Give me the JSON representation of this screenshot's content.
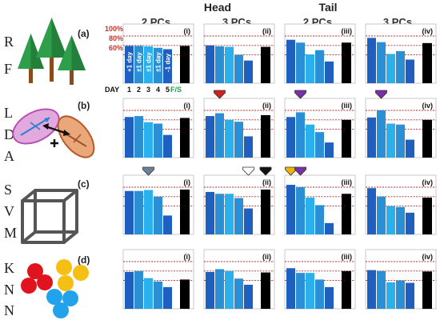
{
  "header": {
    "groups": [
      "Head",
      "Tail"
    ],
    "columns": [
      "2 PCs",
      "3 PCs",
      "2 PCs",
      "3 PCs"
    ]
  },
  "rows": [
    {
      "letters": [
        "R",
        "F"
      ],
      "label": "(a)",
      "icon": "trees-icon"
    },
    {
      "letters": [
        "L",
        "D",
        "A"
      ],
      "label": "(b)",
      "icon": "lda-ellipses-icon"
    },
    {
      "letters": [
        "S",
        "V",
        "M"
      ],
      "label": "(c)",
      "icon": "cube-icon"
    },
    {
      "letters": [
        "K",
        "N",
        "N"
      ],
      "label": "(d)",
      "icon": "clusters-icon"
    }
  ],
  "panel_labels": [
    "(i)",
    "(ii)",
    "(iii)",
    "(iv)"
  ],
  "axis": {
    "ticks": [
      "100%",
      "80%",
      "60%"
    ],
    "day_label": "DAY",
    "day_numbers": [
      "1",
      "2",
      "3",
      "4",
      "5"
    ],
    "fs_label": "F/S",
    "bar_texts": [
      "+1 day",
      "±1 day",
      "±1 day",
      "±1 day",
      "-1 day"
    ]
  },
  "colors": {
    "bar_blues": [
      "#1f5fbf",
      "#2b8fd6",
      "#2bb0ee",
      "#2b8fd6",
      "#1f5fbf"
    ],
    "fs_bar": "#000000",
    "ref_lines": "#b03030",
    "tick_text": "#c0392b",
    "arrow_red": "#cc2222",
    "arrow_purple": "#7a2fa8",
    "arrow_gray": "#6e7f98",
    "arrow_white": "#ffffff",
    "arrow_black": "#111111",
    "arrow_yellow": "#f0b400"
  },
  "chart_data": {
    "type": "bar",
    "categories": [
      "1",
      "2",
      "3",
      "4",
      "5",
      "F/S"
    ],
    "ylim": [
      0,
      110
    ],
    "reference_lines": [
      100,
      80,
      60
    ],
    "panels": [
      {
        "row": "RF",
        "column": "Head 2 PCs",
        "label": "(i)",
        "values": [
          79,
          79,
          78,
          75,
          72,
          79
        ],
        "arrows": []
      },
      {
        "row": "RF",
        "column": "Head 3 PCs",
        "label": "(ii)",
        "values": [
          80,
          78,
          77,
          60,
          48,
          77
        ],
        "arrows": []
      },
      {
        "row": "RF",
        "column": "Tail 2 PCs",
        "label": "(iii)",
        "values": [
          92,
          86,
          61,
          70,
          46,
          86
        ],
        "arrows": []
      },
      {
        "row": "RF",
        "column": "Tail 3 PCs",
        "label": "(iv)",
        "values": [
          96,
          87,
          62,
          68,
          50,
          85
        ],
        "arrows": []
      },
      {
        "row": "LDA",
        "column": "Head 2 PCs",
        "label": "(i)",
        "values": [
          86,
          88,
          75,
          72,
          48,
          84
        ],
        "arrows": []
      },
      {
        "row": "LDA",
        "column": "Head 3 PCs",
        "label": "(ii)",
        "values": [
          88,
          94,
          80,
          76,
          45,
          90
        ],
        "arrows": [
          {
            "color": "red",
            "over": 1
          }
        ]
      },
      {
        "row": "LDA",
        "column": "Tail 2 PCs",
        "label": "(iii)",
        "values": [
          86,
          96,
          70,
          54,
          32,
          80
        ],
        "arrows": [
          {
            "color": "purple",
            "over": 1
          }
        ]
      },
      {
        "row": "LDA",
        "column": "Tail 3 PCs",
        "label": "(iv)",
        "values": [
          85,
          100,
          72,
          70,
          38,
          80
        ],
        "arrows": [
          {
            "color": "purple",
            "over": 1
          }
        ]
      },
      {
        "row": "SVM",
        "column": "Head 2 PCs",
        "label": "(i)",
        "values": [
          92,
          92,
          94,
          80,
          40,
          95
        ],
        "arrows": [
          {
            "color": "gray",
            "over": 2
          }
        ]
      },
      {
        "row": "SVM",
        "column": "Head 3 PCs",
        "label": "(ii)",
        "values": [
          90,
          86,
          86,
          77,
          55,
          95
        ],
        "arrows": [
          {
            "color": "white",
            "over": 4
          },
          {
            "color": "black",
            "over": 5
          }
        ]
      },
      {
        "row": "SVM",
        "column": "Tail 2 PCs",
        "label": "(iii)",
        "values": [
          105,
          100,
          78,
          62,
          24,
          86
        ],
        "arrows": [
          {
            "color": "yellow",
            "over": 0
          },
          {
            "color": "purple",
            "over": 1
          }
        ]
      },
      {
        "row": "SVM",
        "column": "Tail 3 PCs",
        "label": "(iv)",
        "values": [
          98,
          80,
          60,
          58,
          46,
          78
        ],
        "arrows": []
      },
      {
        "row": "KNN",
        "column": "Head 2 PCs",
        "label": "(i)",
        "values": [
          78,
          80,
          65,
          58,
          46,
          62
        ],
        "arrows": []
      },
      {
        "row": "KNN",
        "column": "Head 3 PCs",
        "label": "(ii)",
        "values": [
          78,
          84,
          80,
          64,
          51,
          77
        ],
        "arrows": []
      },
      {
        "row": "KNN",
        "column": "Tail 2 PCs",
        "label": "(iii)",
        "values": [
          86,
          76,
          76,
          62,
          46,
          80
        ],
        "arrows": []
      },
      {
        "row": "KNN",
        "column": "Tail 3 PCs",
        "label": "(iv)",
        "values": [
          82,
          80,
          56,
          60,
          55,
          79
        ],
        "arrows": []
      }
    ]
  }
}
